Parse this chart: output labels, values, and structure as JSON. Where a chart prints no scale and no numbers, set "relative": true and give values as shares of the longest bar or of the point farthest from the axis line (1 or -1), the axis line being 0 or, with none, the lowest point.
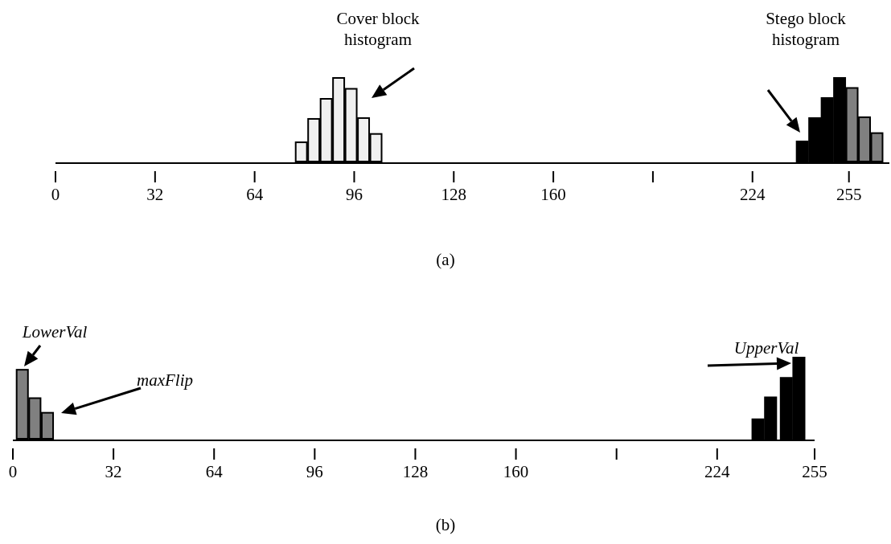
{
  "chart_data": [
    {
      "type": "bar",
      "relative": true,
      "xlim": [
        0,
        268
      ],
      "xticks": [
        0,
        32,
        64,
        96,
        128,
        160,
        {
          "value": 192,
          "label": null
        },
        224,
        255
      ],
      "series": [
        {
          "color": "#f0f0f0",
          "x": [
            79,
            83,
            87,
            91,
            95,
            99,
            103
          ],
          "values": [
            0.23,
            0.51,
            0.75,
            1,
            0.87,
            0.52,
            0.33
          ]
        },
        {
          "color": "#000000",
          "x": [
            240,
            244,
            248,
            252
          ],
          "values": [
            0.24,
            0.52,
            0.76,
            1
          ]
        },
        {
          "color": "#808080",
          "x": [
            256,
            260,
            264
          ],
          "values": [
            0.88,
            0.53,
            0.34
          ]
        }
      ],
      "annotations": [
        "Cover block histogram",
        "Stego block histogram",
        "(a)"
      ]
    },
    {
      "type": "bar",
      "relative": true,
      "xlim": [
        0,
        255
      ],
      "xticks": [
        0,
        32,
        64,
        96,
        128,
        160,
        {
          "value": 192,
          "label": null
        },
        224,
        255
      ],
      "series": [
        {
          "color": "#808080",
          "x": [
            3,
            7,
            11
          ],
          "values": [
            0.85,
            0.5,
            0.32
          ]
        },
        {
          "color": "#000000",
          "x": [
            237,
            241,
            246,
            250
          ],
          "values": [
            0.24,
            0.51,
            0.75,
            1
          ]
        }
      ],
      "annotations": [
        "LowerVal",
        "maxFlip",
        "UpperVal",
        "(b)"
      ]
    }
  ]
}
